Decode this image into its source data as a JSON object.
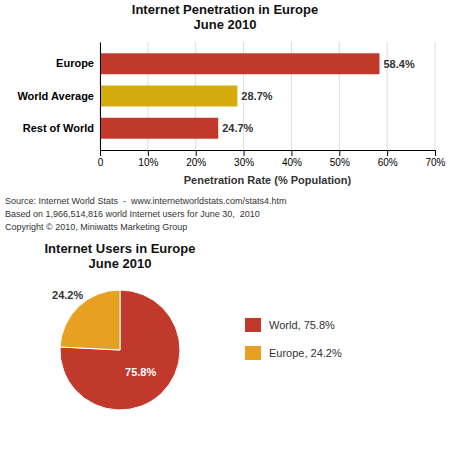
{
  "chart_data": [
    {
      "type": "bar",
      "orientation": "horizontal",
      "title": "Internet Penetration in Europe\nJune 2010",
      "categories": [
        "Europe",
        "World Average",
        "Rest of World"
      ],
      "values": [
        58.4,
        28.7,
        24.7
      ],
      "value_labels": [
        "58.4%",
        "28.7%",
        "24.7%"
      ],
      "data_labels": true,
      "colors": [
        "#c0392b",
        "#d4ac0d",
        "#c0392b"
      ],
      "x_label": "Penetration Rate (% Population)",
      "xlim": [
        0,
        70
      ],
      "xticks": [
        0,
        {
          "value": 10,
          "label": "10%"
        },
        {
          "value": 20,
          "label": "20%"
        },
        {
          "value": 30,
          "label": "30%"
        },
        {
          "value": 40,
          "label": "40%"
        },
        {
          "value": 50,
          "label": "50%"
        },
        {
          "value": 60,
          "label": "60%"
        },
        {
          "value": 70,
          "label": "70%"
        }
      ],
      "grid": true,
      "annotations": [
        "Source: Internet World Stats  -  www.internetworldstats.com/stats4.htm",
        "Based on 1,966,514,816 world Internet users for June 30,  2010",
        "Copyright © 2010, Miniwatts Marketing Group"
      ]
    },
    {
      "type": "pie",
      "title": "Internet Users in Europe\nJune 2010",
      "categories": [
        "World, 75.8%",
        "Europe, 24.2%"
      ],
      "values": [
        75.8,
        24.2
      ],
      "value_labels": [
        "75.8%",
        "24.2%"
      ],
      "data_labels": true,
      "colors": [
        "#c0392b",
        "#e8a020"
      ],
      "legend": "right"
    }
  ]
}
